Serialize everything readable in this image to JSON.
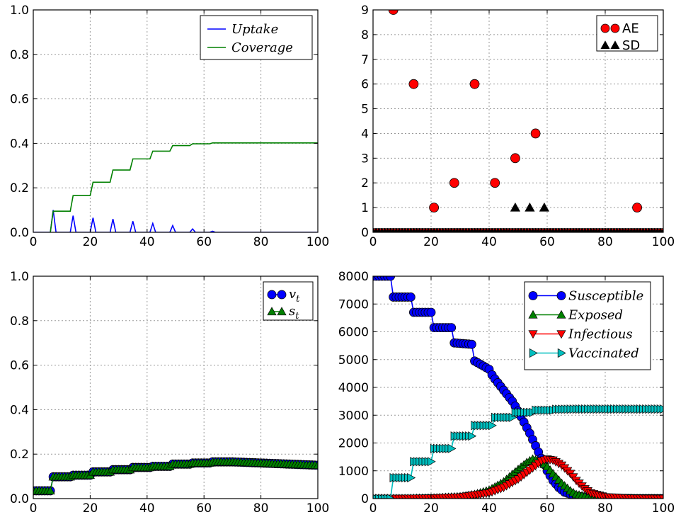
{
  "colors": {
    "blue": "#0000ff",
    "green": "#008000",
    "red": "#ff0000",
    "cyan": "#00bfbf",
    "black": "#000000",
    "grid": "#9a9a9a"
  },
  "chart_data": [
    {
      "id": "top-left",
      "type": "line",
      "title": "",
      "xlabel": "",
      "ylabel": "",
      "xlim": [
        0,
        100
      ],
      "ylim": [
        0,
        1.0
      ],
      "xticks": [
        "0",
        "20",
        "40",
        "60",
        "80",
        "100"
      ],
      "yticks": [
        "0.0",
        "0.2",
        "0.4",
        "0.6",
        "0.8",
        "1.0"
      ],
      "grid": true,
      "legend_position": "top-right",
      "series": [
        {
          "name": "Uptake",
          "color": "#0000ff",
          "marker": "none",
          "x": [
            0,
            6,
            7,
            8,
            13,
            14,
            15,
            20,
            21,
            22,
            27,
            28,
            29,
            34,
            35,
            36,
            41,
            42,
            43,
            48,
            49,
            50,
            55,
            56,
            57,
            62,
            63,
            64,
            100
          ],
          "y": [
            0,
            0,
            0.1,
            0,
            0,
            0.075,
            0,
            0,
            0.065,
            0,
            0,
            0.06,
            0,
            0,
            0.05,
            0,
            0,
            0.04,
            0,
            0,
            0.03,
            0,
            0,
            0.015,
            0,
            0,
            0.005,
            0,
            0
          ]
        },
        {
          "name": "Coverage",
          "color": "#008000",
          "marker": "none",
          "x": [
            6,
            7,
            13,
            14,
            20,
            21,
            27,
            28,
            34,
            35,
            41,
            42,
            48,
            49,
            55,
            56,
            62,
            63,
            100
          ],
          "y": [
            0,
            0.095,
            0.095,
            0.165,
            0.165,
            0.225,
            0.225,
            0.28,
            0.28,
            0.33,
            0.33,
            0.365,
            0.365,
            0.39,
            0.39,
            0.398,
            0.398,
            0.402,
            0.402
          ]
        }
      ]
    },
    {
      "id": "top-right",
      "type": "scatter",
      "title": "",
      "xlabel": "",
      "ylabel": "",
      "xlim": [
        0,
        100
      ],
      "ylim": [
        0,
        9
      ],
      "xticks": [
        "0",
        "20",
        "40",
        "60",
        "80",
        "100"
      ],
      "yticks": [
        "0",
        "1",
        "2",
        "3",
        "4",
        "5",
        "6",
        "7",
        "8",
        "9"
      ],
      "grid": true,
      "legend_position": "top-right",
      "series": [
        {
          "name": "AE",
          "color": "#ff0000",
          "marker": "circle",
          "x": [
            7,
            14,
            21,
            28,
            35,
            42,
            49,
            56,
            91
          ],
          "y": [
            9,
            6,
            1,
            2,
            6,
            2,
            3,
            4,
            1
          ],
          "baseline_zero": true
        },
        {
          "name": "SD",
          "color": "#000000",
          "marker": "triangle-up",
          "x": [
            49,
            54,
            59
          ],
          "y": [
            1,
            1,
            1
          ],
          "baseline_zero": true
        }
      ]
    },
    {
      "id": "bottom-left",
      "type": "scatter",
      "title": "",
      "xlabel": "",
      "ylabel": "",
      "xlim": [
        0,
        100
      ],
      "ylim": [
        0,
        1.0
      ],
      "xticks": [
        "0",
        "20",
        "40",
        "60",
        "80",
        "100"
      ],
      "yticks": [
        "0.0",
        "0.2",
        "0.4",
        "0.6",
        "0.8",
        "1.0"
      ],
      "grid": true,
      "legend_position": "top-right",
      "series": [
        {
          "name": "v_t",
          "label_main": "v",
          "label_sub": "t",
          "color": "#0000ff",
          "marker": "circle",
          "x": [
            0,
            6,
            7,
            13,
            14,
            20,
            21,
            27,
            28,
            34,
            35,
            41,
            42,
            48,
            49,
            55,
            56,
            62,
            63,
            70,
            80,
            90,
            100
          ],
          "y": [
            0.035,
            0.035,
            0.098,
            0.098,
            0.105,
            0.105,
            0.12,
            0.12,
            0.13,
            0.13,
            0.14,
            0.14,
            0.145,
            0.145,
            0.155,
            0.155,
            0.16,
            0.16,
            0.165,
            0.165,
            0.16,
            0.155,
            0.15
          ]
        },
        {
          "name": "s_t",
          "label_main": "s",
          "label_sub": "t",
          "color": "#008000",
          "marker": "triangle-up",
          "x": [
            0,
            6,
            7,
            13,
            14,
            20,
            21,
            27,
            28,
            34,
            35,
            41,
            42,
            48,
            49,
            55,
            56,
            62,
            63,
            70,
            80,
            90,
            100
          ],
          "y": [
            0.035,
            0.035,
            0.098,
            0.098,
            0.105,
            0.105,
            0.12,
            0.12,
            0.13,
            0.13,
            0.14,
            0.14,
            0.145,
            0.145,
            0.155,
            0.155,
            0.16,
            0.16,
            0.165,
            0.165,
            0.16,
            0.155,
            0.15
          ]
        }
      ]
    },
    {
      "id": "bottom-right",
      "type": "line",
      "title": "",
      "xlabel": "",
      "ylabel": "",
      "xlim": [
        0,
        100
      ],
      "ylim": [
        0,
        8000
      ],
      "xticks": [
        "0",
        "20",
        "40",
        "60",
        "80",
        "100"
      ],
      "yticks": [
        "0",
        "1000",
        "2000",
        "3000",
        "4000",
        "5000",
        "6000",
        "7000",
        "8000"
      ],
      "grid": true,
      "legend_position": "top-right",
      "series": [
        {
          "name": "Susceptible",
          "color": "#0000ff",
          "marker": "circle",
          "x": [
            0,
            6,
            7,
            13,
            14,
            20,
            21,
            27,
            28,
            34,
            35,
            40,
            41,
            42,
            45,
            48,
            50,
            52,
            54,
            56,
            58,
            60,
            62,
            64,
            66,
            70,
            75,
            80,
            90,
            100
          ],
          "y": [
            8000,
            8000,
            7250,
            7250,
            6700,
            6700,
            6150,
            6150,
            5600,
            5550,
            4950,
            4650,
            4450,
            4300,
            3900,
            3500,
            3150,
            2750,
            2350,
            1900,
            1450,
            1000,
            650,
            400,
            230,
            90,
            30,
            10,
            0,
            0
          ]
        },
        {
          "name": "Exposed",
          "color": "#008000",
          "marker": "triangle-up",
          "x": [
            0,
            10,
            20,
            30,
            35,
            40,
            45,
            50,
            53,
            55,
            58,
            60,
            62,
            65,
            68,
            70,
            75,
            80,
            90,
            100
          ],
          "y": [
            0,
            5,
            20,
            70,
            150,
            300,
            600,
            1050,
            1300,
            1420,
            1320,
            1150,
            900,
            550,
            280,
            150,
            40,
            10,
            0,
            0
          ]
        },
        {
          "name": "Infectious",
          "color": "#ff0000",
          "marker": "triangle-down",
          "x": [
            0,
            10,
            20,
            30,
            40,
            45,
            50,
            55,
            58,
            60,
            62,
            65,
            68,
            70,
            73,
            75,
            80,
            90,
            100
          ],
          "y": [
            0,
            5,
            15,
            50,
            200,
            400,
            700,
            1100,
            1350,
            1420,
            1380,
            1200,
            900,
            650,
            350,
            200,
            60,
            10,
            0
          ]
        },
        {
          "name": "Vaccinated",
          "color": "#00bfbf",
          "marker": "triangle-right",
          "x": [
            0,
            6,
            7,
            13,
            14,
            20,
            21,
            27,
            28,
            34,
            35,
            41,
            42,
            48,
            49,
            55,
            56,
            62,
            63,
            70,
            80,
            90,
            100
          ],
          "y": [
            0,
            0,
            750,
            750,
            1330,
            1330,
            1800,
            1800,
            2250,
            2250,
            2630,
            2630,
            2920,
            2920,
            3100,
            3100,
            3180,
            3180,
            3210,
            3220,
            3220,
            3220,
            3220
          ]
        }
      ]
    }
  ]
}
